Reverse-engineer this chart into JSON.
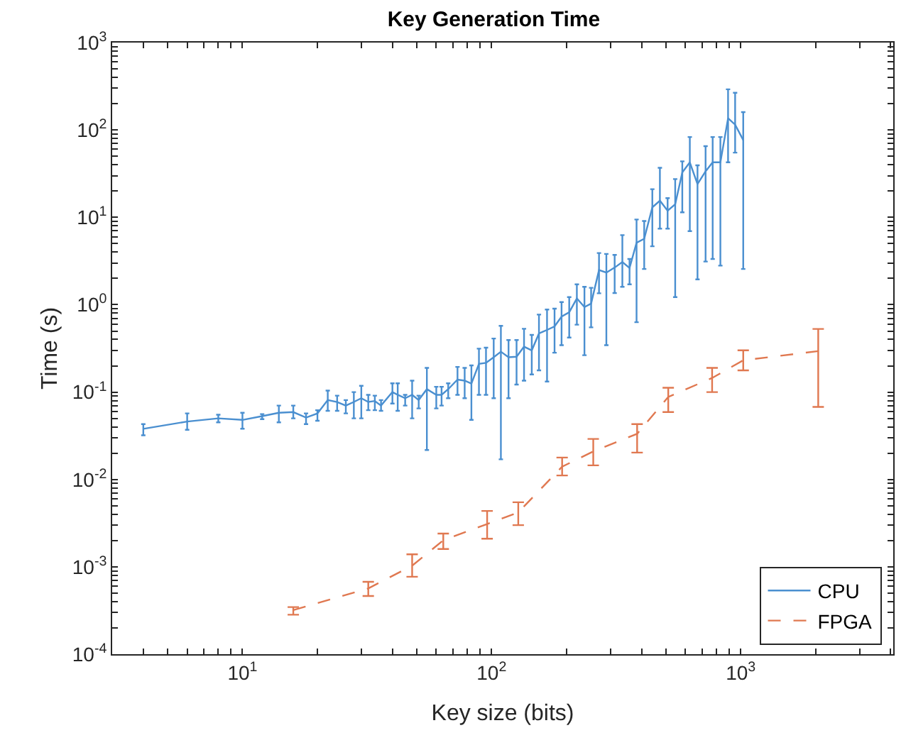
{
  "chart_data": {
    "type": "line",
    "title": "Key Generation Time",
    "xlabel": "Key size (bits)",
    "ylabel": "Time (s)",
    "log": "xy",
    "legend": "bottom right",
    "marker": "none",
    "xlim": [
      3,
      4096
    ],
    "ylim": [
      0.0001,
      1000
    ],
    "xticks": [
      {
        "value": 3,
        "label": null
      },
      {
        "value": 4,
        "label": null
      },
      {
        "value": 5,
        "label": null
      },
      {
        "value": 6,
        "label": null
      },
      {
        "value": 7,
        "label": null
      },
      {
        "value": 8,
        "label": null
      },
      {
        "value": 9,
        "label": null
      },
      {
        "value": 10,
        "label": "10$^{1}$"
      },
      {
        "value": 20,
        "label": null
      },
      {
        "value": 30,
        "label": null
      },
      {
        "value": 40,
        "label": null
      },
      {
        "value": 50,
        "label": null
      },
      {
        "value": 60,
        "label": null
      },
      {
        "value": 70,
        "label": null
      },
      {
        "value": 80,
        "label": null
      },
      {
        "value": 90,
        "label": null
      },
      {
        "value": 100,
        "label": "10$^{2}$"
      },
      {
        "value": 200,
        "label": null
      },
      {
        "value": 300,
        "label": null
      },
      {
        "value": 400,
        "label": null
      },
      {
        "value": 500,
        "label": null
      },
      {
        "value": 600,
        "label": null
      },
      {
        "value": 700,
        "label": null
      },
      {
        "value": 800,
        "label": null
      },
      {
        "value": 900,
        "label": null
      },
      {
        "value": 1000,
        "label": "10$^{3}$"
      },
      {
        "value": 2000,
        "label": null
      },
      {
        "value": 3000,
        "label": null
      },
      {
        "value": 4000,
        "label": null
      }
    ],
    "yticks": [
      {
        "value": 0.0001,
        "label": "10$^{-4}$"
      },
      {
        "value": 0.0002,
        "label": null
      },
      {
        "value": 0.0003,
        "label": null
      },
      {
        "value": 0.0004,
        "label": null
      },
      {
        "value": 0.0005,
        "label": null
      },
      {
        "value": 0.0006,
        "label": null
      },
      {
        "value": 0.0007,
        "label": null
      },
      {
        "value": 0.0008,
        "label": null
      },
      {
        "value": 0.0009,
        "label": null
      },
      {
        "value": 0.001,
        "label": "10$^{-3}$"
      },
      {
        "value": 0.002,
        "label": null
      },
      {
        "value": 0.003,
        "label": null
      },
      {
        "value": 0.004,
        "label": null
      },
      {
        "value": 0.005,
        "label": null
      },
      {
        "value": 0.006,
        "label": null
      },
      {
        "value": 0.007,
        "label": null
      },
      {
        "value": 0.008,
        "label": null
      },
      {
        "value": 0.009,
        "label": null
      },
      {
        "value": 0.01,
        "label": "10$^{-2}$"
      },
      {
        "value": 0.02,
        "label": null
      },
      {
        "value": 0.03,
        "label": null
      },
      {
        "value": 0.04,
        "label": null
      },
      {
        "value": 0.05,
        "label": null
      },
      {
        "value": 0.06,
        "label": null
      },
      {
        "value": 0.07,
        "label": null
      },
      {
        "value": 0.08,
        "label": null
      },
      {
        "value": 0.09,
        "label": null
      },
      {
        "value": 0.1,
        "label": "10$^{-1}$"
      },
      {
        "value": 0.2,
        "label": null
      },
      {
        "value": 0.3,
        "label": null
      },
      {
        "value": 0.4,
        "label": null
      },
      {
        "value": 0.5,
        "label": null
      },
      {
        "value": 0.6,
        "label": null
      },
      {
        "value": 0.7,
        "label": null
      },
      {
        "value": 0.8,
        "label": null
      },
      {
        "value": 0.9,
        "label": null
      },
      {
        "value": 1,
        "label": "10$^{0}$"
      },
      {
        "value": 2,
        "label": null
      },
      {
        "value": 3,
        "label": null
      },
      {
        "value": 4,
        "label": null
      },
      {
        "value": 5,
        "label": null
      },
      {
        "value": 6,
        "label": null
      },
      {
        "value": 7,
        "label": null
      },
      {
        "value": 8,
        "label": null
      },
      {
        "value": 9,
        "label": null
      },
      {
        "value": 10,
        "label": "10$^{1}$"
      },
      {
        "value": 20,
        "label": null
      },
      {
        "value": 30,
        "label": null
      },
      {
        "value": 40,
        "label": null
      },
      {
        "value": 50,
        "label": null
      },
      {
        "value": 60,
        "label": null
      },
      {
        "value": 70,
        "label": null
      },
      {
        "value": 80,
        "label": null
      },
      {
        "value": 90,
        "label": null
      },
      {
        "value": 100,
        "label": "10$^{2}$"
      },
      {
        "value": 200,
        "label": null
      },
      {
        "value": 300,
        "label": null
      },
      {
        "value": 400,
        "label": null
      },
      {
        "value": 500,
        "label": null
      },
      {
        "value": 600,
        "label": null
      },
      {
        "value": 700,
        "label": null
      },
      {
        "value": 800,
        "label": null
      },
      {
        "value": 900,
        "label": null
      },
      {
        "value": 1000,
        "label": "10$^{3}$"
      }
    ],
    "series": [
      {
        "name": "CPU",
        "color": "#4a8fd0",
        "line_style": "solid",
        "x": [
          4,
          6,
          8,
          10,
          12,
          14,
          16,
          18,
          20,
          22,
          24,
          26,
          28,
          30,
          32,
          34,
          36,
          40,
          42,
          45,
          48,
          51,
          55,
          60,
          63,
          67,
          73,
          78,
          83,
          89,
          95,
          102,
          109,
          117,
          126,
          135,
          145,
          155,
          167,
          179,
          191,
          205,
          220,
          236,
          251,
          270,
          289,
          312,
          335,
          358,
          382,
          410,
          442,
          474,
          509,
          546,
          583,
          625,
          671,
          723,
          772,
          829,
          890,
          950,
          1024
        ],
        "values": [
          0.038,
          0.046,
          0.05,
          0.048,
          0.053,
          0.058,
          0.059,
          0.051,
          0.057,
          0.081,
          0.077,
          0.07,
          0.077,
          0.085,
          0.077,
          0.079,
          0.07,
          0.1,
          0.093,
          0.085,
          0.093,
          0.081,
          0.108,
          0.093,
          0.093,
          0.108,
          0.139,
          0.135,
          0.125,
          0.21,
          0.216,
          0.25,
          0.29,
          0.25,
          0.254,
          0.331,
          0.3,
          0.469,
          0.514,
          0.565,
          0.73,
          0.82,
          1.18,
          0.94,
          1.03,
          2.49,
          2.33,
          2.66,
          3.08,
          2.63,
          5.12,
          5.69,
          13,
          15.5,
          11.9,
          14.1,
          32.6,
          42.6,
          24,
          33.6,
          42.6,
          42.6,
          136,
          115,
          76.7
        ],
        "errors": [
          [
            0.032,
            0.043
          ],
          [
            0.037,
            0.057
          ],
          [
            0.045,
            0.055
          ],
          [
            0.038,
            0.058
          ],
          [
            0.049,
            0.056
          ],
          [
            0.045,
            0.07
          ],
          [
            0.05,
            0.07
          ],
          [
            0.043,
            0.057
          ],
          [
            0.047,
            0.062
          ],
          [
            0.061,
            0.104
          ],
          [
            0.061,
            0.091
          ],
          [
            0.057,
            0.081
          ],
          [
            0.05,
            0.1
          ],
          [
            0.05,
            0.118
          ],
          [
            0.062,
            0.093
          ],
          [
            0.062,
            0.091
          ],
          [
            0.061,
            0.081
          ],
          [
            0.074,
            0.126
          ],
          [
            0.061,
            0.126
          ],
          [
            0.07,
            0.093
          ],
          [
            0.05,
            0.135
          ],
          [
            0.065,
            0.091
          ],
          [
            0.0217,
            0.189
          ],
          [
            0.065,
            0.115
          ],
          [
            0.07,
            0.115
          ],
          [
            0.085,
            0.126
          ],
          [
            0.093,
            0.194
          ],
          [
            0.085,
            0.189
          ],
          [
            0.048,
            0.202
          ],
          [
            0.093,
            0.314
          ],
          [
            0.093,
            0.322
          ],
          [
            0.085,
            0.41
          ],
          [
            0.017,
            0.573
          ],
          [
            0.085,
            0.394
          ],
          [
            0.122,
            0.394
          ],
          [
            0.135,
            0.53
          ],
          [
            0.159,
            0.451
          ],
          [
            0.177,
            0.77
          ],
          [
            0.132,
            0.88
          ],
          [
            0.282,
            0.9
          ],
          [
            0.344,
            1.07
          ],
          [
            0.42,
            1.22
          ],
          [
            0.59,
            1.71
          ],
          [
            0.264,
            1.6
          ],
          [
            0.55,
            1.56
          ],
          [
            1.35,
            3.9
          ],
          [
            0.344,
            3.81
          ],
          [
            1.36,
            3.71
          ],
          [
            1.6,
            6.25
          ],
          [
            1.71,
            3.34
          ],
          [
            0.63,
            9.44
          ],
          [
            2.56,
            9.08
          ],
          [
            4.66,
            21
          ],
          [
            7.43,
            36.9
          ],
          [
            7.43,
            16.6
          ],
          [
            1.22,
            27.4
          ],
          [
            11.4,
            43.7
          ],
          [
            6.95,
            83
          ],
          [
            1.95,
            39.4
          ],
          [
            3.12,
            65.3
          ],
          [
            3.34,
            83
          ],
          [
            2.8,
            83
          ],
          [
            42.6,
            292
          ],
          [
            55,
            266
          ],
          [
            2.56,
            160
          ]
        ]
      },
      {
        "name": "FPGA",
        "color": "#e07850",
        "line_style": "dashed",
        "x": [
          16,
          32,
          48,
          64,
          96,
          128,
          192,
          256,
          384,
          512,
          768,
          1024,
          2048
        ],
        "values": [
          0.000319,
          0.000566,
          0.00103,
          0.00201,
          0.00309,
          0.0042,
          0.014,
          0.0209,
          0.0333,
          0.088,
          0.145,
          0.231,
          0.294
        ],
        "errors": [
          [
            0.000283,
            0.000346
          ],
          [
            0.000463,
            0.000673
          ],
          [
            0.000769,
            0.00139
          ],
          [
            0.0016,
            0.0024
          ],
          [
            0.0021,
            0.00436
          ],
          [
            0.003,
            0.00548
          ],
          [
            0.0111,
            0.0178
          ],
          [
            0.0145,
            0.0291
          ],
          [
            0.0203,
            0.043
          ],
          [
            0.059,
            0.112
          ],
          [
            0.1,
            0.189
          ],
          [
            0.177,
            0.3
          ],
          [
            0.0676,
            0.528
          ]
        ]
      }
    ]
  }
}
